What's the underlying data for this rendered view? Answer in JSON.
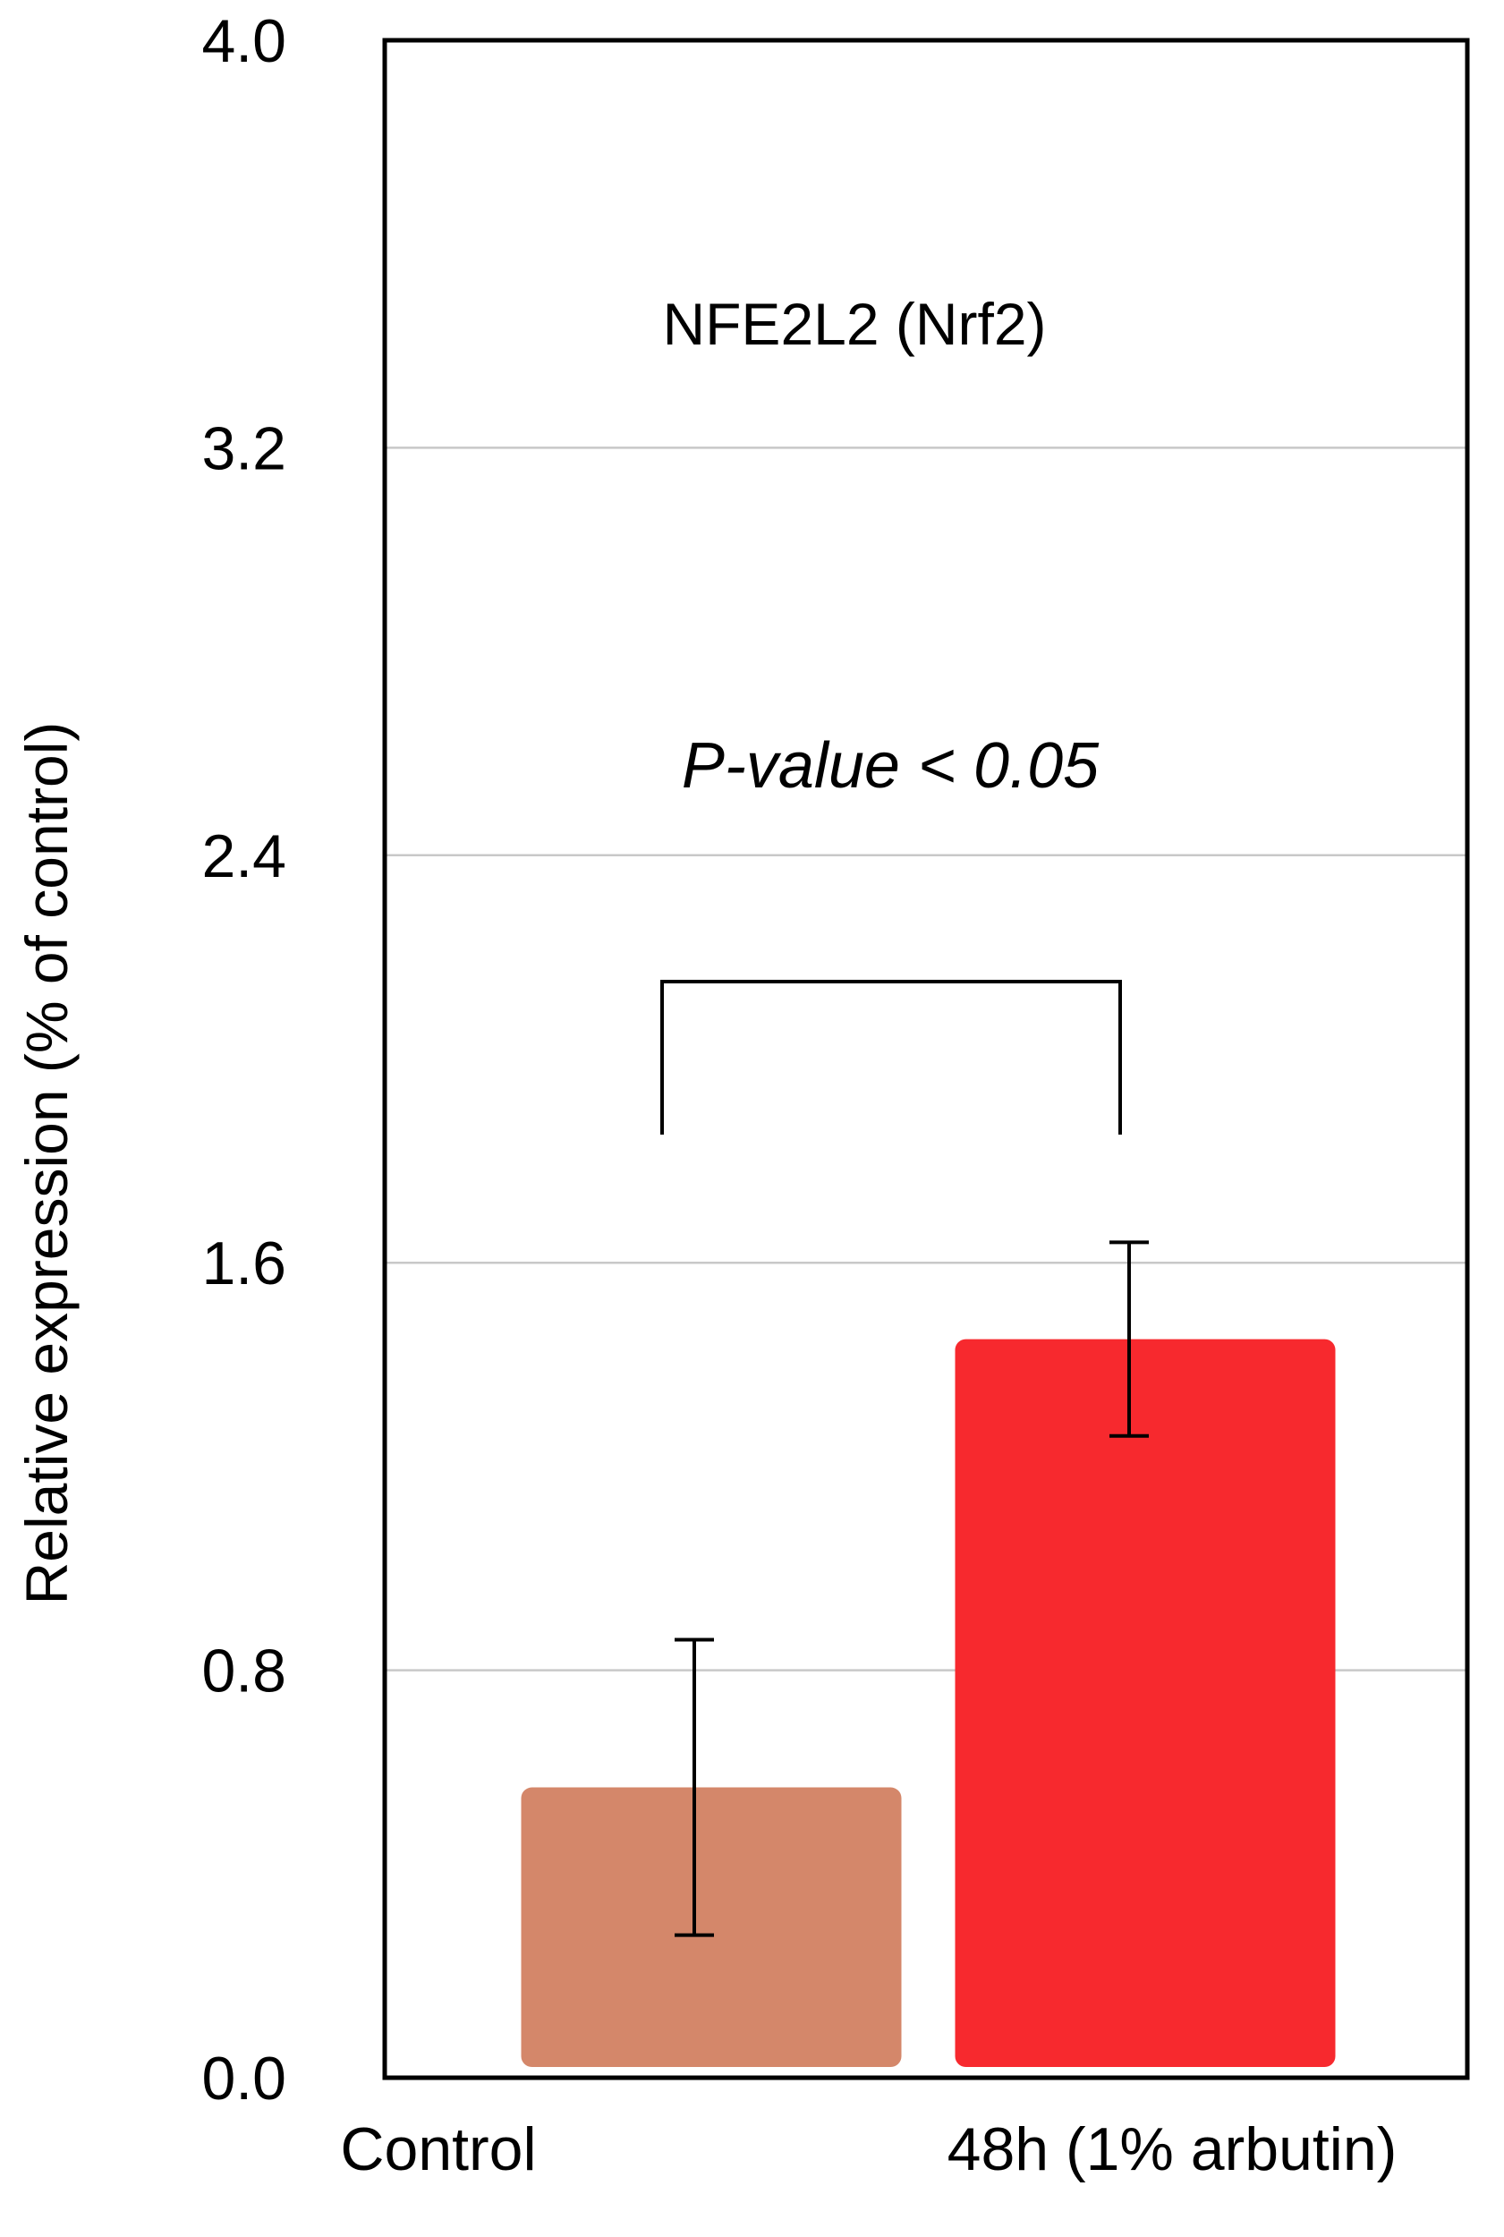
{
  "chart_data": {
    "type": "bar",
    "title": "NFE2L2 (Nrf2)",
    "ylabel": "Relative expression (% of control)",
    "xlabel": "",
    "categories": [
      "Control",
      "48h (1% arbutin)"
    ],
    "values": [
      0.57,
      1.45
    ],
    "error": [
      0.29,
      0.19
    ],
    "colors": [
      "#d4876a",
      "#f7292e"
    ],
    "ylim": [
      0,
      4.0
    ],
    "yticks": [
      "0.0",
      "0.8",
      "1.6",
      "2.4",
      "3.2",
      "4.0"
    ],
    "ytick_values": [
      0,
      0.8,
      1.6,
      2.4,
      3.2,
      4.0
    ],
    "grid": true,
    "annotation": "P-value < 0.05",
    "significance_bracket": [
      "Control",
      "48h (1% arbutin)"
    ]
  }
}
